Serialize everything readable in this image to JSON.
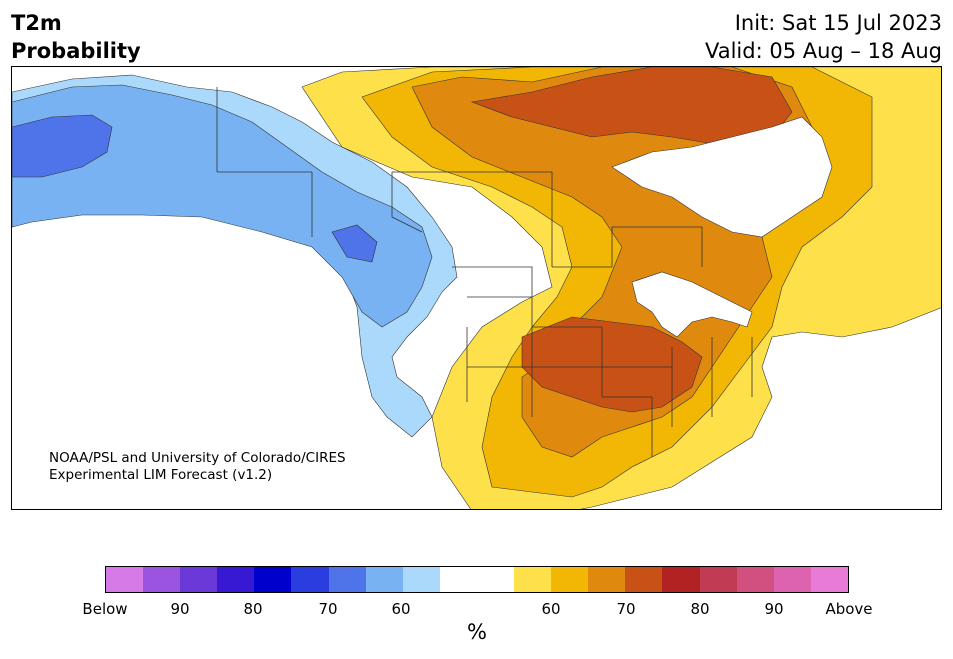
{
  "header": {
    "variable": "T2m",
    "product": "Probability",
    "init": "Init: Sat 15 Jul 2023",
    "valid": "Valid: 05 Aug – 18 Aug"
  },
  "credit": {
    "line1": "NOAA/PSL and University of Colorado/CIRES",
    "line2": "Experimental LIM Forecast (v1.2)"
  },
  "colorbar": {
    "colors": [
      "#d67ae8",
      "#9b54e0",
      "#6a39d8",
      "#3719d3",
      "#0000cd",
      "#2a3ee0",
      "#4f73e8",
      "#78b2f2",
      "#aad9fb",
      "#ffffff",
      "#ffffff",
      "#fee14a",
      "#f2b705",
      "#df8a0f",
      "#c85216",
      "#b22222",
      "#c23b55",
      "#d2507f",
      "#dd62b0",
      "#e87ad8"
    ],
    "tick_labels": [
      "Below",
      "90",
      "80",
      "70",
      "60",
      "60",
      "70",
      "80",
      "90",
      "Above"
    ],
    "unit": "%"
  },
  "map": {
    "category_colors": {
      "below_70": "#4f73e8",
      "below_60": "#78b2f2",
      "below_50": "#aad9fb",
      "near_normal": "#ffffff",
      "above_50": "#fee14a",
      "above_60": "#f2b705",
      "above_70": "#df8a0f",
      "above_80": "#c85216"
    },
    "boundary_color": "#333333"
  }
}
